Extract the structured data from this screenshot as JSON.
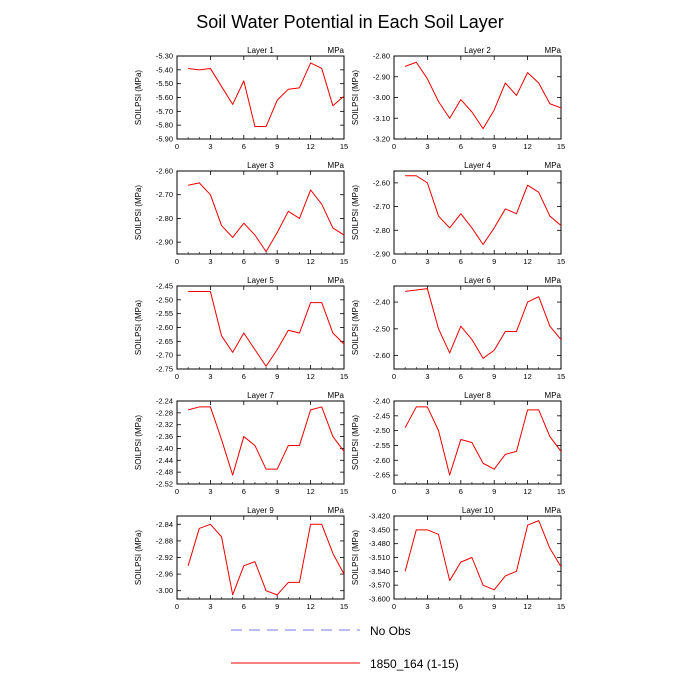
{
  "figure": {
    "title": "Soil Water Potential in Each Soil Layer",
    "units": "MPa",
    "ylabel": "SOILPSI  (MPa)",
    "legend": {
      "entries": [
        {
          "label": "No Obs",
          "color": "#7777ee",
          "style": "dashed"
        },
        {
          "label": "1850_164 (1-15)",
          "color": "#ee0000",
          "style": "solid"
        }
      ]
    }
  },
  "chart_data": [
    {
      "type": "line",
      "title": "Layer 1",
      "units": "MPa",
      "ylabel": "SOILPSI  (MPa)",
      "xlim": [
        0,
        15
      ],
      "xticks": [
        0,
        3,
        6,
        9,
        12,
        15
      ],
      "ylim": [
        -5.9,
        -5.3
      ],
      "yticks": [
        "-5.30",
        "-5.40",
        "-5.50",
        "-5.60",
        "-5.70",
        "-5.80",
        "-5.90"
      ],
      "series": [
        {
          "name": "1850_164 (1-15)",
          "color": "#ee0000",
          "x": [
            1,
            2,
            3,
            4,
            5,
            6,
            7,
            8,
            9,
            10,
            11,
            12,
            13,
            14,
            15
          ],
          "y": [
            -5.39,
            -5.4,
            -5.39,
            -5.52,
            -5.65,
            -5.48,
            -5.81,
            -5.81,
            -5.62,
            -5.54,
            -5.53,
            -5.35,
            -5.39,
            -5.66,
            -5.59
          ]
        }
      ]
    },
    {
      "type": "line",
      "title": "Layer 2",
      "units": "MPa",
      "ylabel": "SOILPSI  (MPa)",
      "xlim": [
        0,
        15
      ],
      "xticks": [
        0,
        3,
        6,
        9,
        12,
        15
      ],
      "ylim": [
        -3.2,
        -2.8
      ],
      "yticks": [
        "-2.80",
        "-2.90",
        "-3.00",
        "-3.10",
        "-3.20"
      ],
      "series": [
        {
          "name": "1850_164 (1-15)",
          "color": "#ee0000",
          "x": [
            1,
            2,
            3,
            4,
            5,
            6,
            7,
            8,
            9,
            10,
            11,
            12,
            13,
            14,
            15
          ],
          "y": [
            -2.85,
            -2.83,
            -2.91,
            -3.02,
            -3.1,
            -3.01,
            -3.07,
            -3.15,
            -3.06,
            -2.93,
            -2.99,
            -2.88,
            -2.93,
            -3.03,
            -3.05
          ]
        }
      ]
    },
    {
      "type": "line",
      "title": "Layer 3",
      "units": "MPa",
      "ylabel": "SOILPSI  (MPa)",
      "xlim": [
        0,
        15
      ],
      "xticks": [
        0,
        3,
        6,
        9,
        12,
        15
      ],
      "ylim": [
        -2.95,
        -2.6
      ],
      "yticks": [
        "-2.60",
        "-2.70",
        "-2.80",
        "-2.90"
      ],
      "series": [
        {
          "name": "1850_164 (1-15)",
          "color": "#ee0000",
          "x": [
            1,
            2,
            3,
            4,
            5,
            6,
            7,
            8,
            9,
            10,
            11,
            12,
            13,
            14,
            15
          ],
          "y": [
            -2.66,
            -2.65,
            -2.7,
            -2.83,
            -2.88,
            -2.82,
            -2.87,
            -2.94,
            -2.86,
            -2.77,
            -2.8,
            -2.68,
            -2.74,
            -2.84,
            -2.87
          ]
        }
      ]
    },
    {
      "type": "line",
      "title": "Layer 4",
      "units": "MPa",
      "ylabel": "SOILPSI  (MPa)",
      "xlim": [
        0,
        15
      ],
      "xticks": [
        0,
        3,
        6,
        9,
        12,
        15
      ],
      "ylim": [
        -2.9,
        -2.55
      ],
      "yticks": [
        "-2.60",
        "-2.70",
        "-2.80",
        "-2.90"
      ],
      "series": [
        {
          "name": "1850_164 (1-15)",
          "color": "#ee0000",
          "x": [
            1,
            2,
            3,
            4,
            5,
            6,
            7,
            8,
            9,
            10,
            11,
            12,
            13,
            14,
            15
          ],
          "y": [
            -2.57,
            -2.57,
            -2.6,
            -2.74,
            -2.79,
            -2.73,
            -2.79,
            -2.86,
            -2.79,
            -2.71,
            -2.73,
            -2.61,
            -2.64,
            -2.74,
            -2.78
          ]
        }
      ]
    },
    {
      "type": "line",
      "title": "Layer 5",
      "units": "MPa",
      "ylabel": "SOILPSI  (MPa)",
      "xlim": [
        0,
        15
      ],
      "xticks": [
        0,
        3,
        6,
        9,
        12,
        15
      ],
      "ylim": [
        -2.75,
        -2.45
      ],
      "yticks": [
        "-2.45",
        "-2.50",
        "-2.55",
        "-2.60",
        "-2.65",
        "-2.70",
        "-2.75"
      ],
      "series": [
        {
          "name": "1850_164 (1-15)",
          "color": "#ee0000",
          "x": [
            1,
            2,
            3,
            4,
            5,
            6,
            7,
            8,
            9,
            10,
            11,
            12,
            13,
            14,
            15
          ],
          "y": [
            -2.47,
            -2.47,
            -2.47,
            -2.63,
            -2.69,
            -2.62,
            -2.68,
            -2.74,
            -2.68,
            -2.61,
            -2.62,
            -2.51,
            -2.51,
            -2.62,
            -2.66
          ]
        }
      ]
    },
    {
      "type": "line",
      "title": "Layer 6",
      "units": "MPa",
      "ylabel": "SOILPSI  (MPa)",
      "xlim": [
        0,
        15
      ],
      "xticks": [
        0,
        3,
        6,
        9,
        12,
        15
      ],
      "ylim": [
        -2.65,
        -2.34
      ],
      "yticks": [
        "-2.40",
        "-2.50",
        "-2.60"
      ],
      "series": [
        {
          "name": "1850_164 (1-15)",
          "color": "#ee0000",
          "x": [
            1,
            2,
            3,
            4,
            5,
            6,
            7,
            8,
            9,
            10,
            11,
            12,
            13,
            14,
            15
          ],
          "y": [
            -2.36,
            -2.355,
            -2.35,
            -2.5,
            -2.59,
            -2.49,
            -2.54,
            -2.61,
            -2.58,
            -2.51,
            -2.51,
            -2.4,
            -2.38,
            -2.49,
            -2.54
          ]
        }
      ]
    },
    {
      "type": "line",
      "title": "Layer 7",
      "units": "MPa",
      "ylabel": "SOILPSI  (MPa)",
      "xlim": [
        0,
        15
      ],
      "xticks": [
        0,
        3,
        6,
        9,
        12,
        15
      ],
      "ylim": [
        -2.52,
        -2.24
      ],
      "yticks": [
        "-2.24",
        "-2.28",
        "-2.32",
        "-2.36",
        "-2.40",
        "-2.44",
        "-2.48",
        "-2.52"
      ],
      "series": [
        {
          "name": "1850_164 (1-15)",
          "color": "#ee0000",
          "x": [
            1,
            2,
            3,
            4,
            5,
            6,
            7,
            8,
            9,
            10,
            11,
            12,
            13,
            14,
            15
          ],
          "y": [
            -2.27,
            -2.26,
            -2.26,
            -2.37,
            -2.49,
            -2.36,
            -2.39,
            -2.47,
            -2.47,
            -2.39,
            -2.39,
            -2.27,
            -2.26,
            -2.36,
            -2.41
          ]
        }
      ]
    },
    {
      "type": "line",
      "title": "Layer 8",
      "units": "MPa",
      "ylabel": "SOILPSI  (MPa)",
      "xlim": [
        0,
        15
      ],
      "xticks": [
        0,
        3,
        6,
        9,
        12,
        15
      ],
      "ylim": [
        -2.68,
        -2.4
      ],
      "yticks": [
        "-2.40",
        "-2.45",
        "-2.50",
        "-2.55",
        "-2.60",
        "-2.65"
      ],
      "series": [
        {
          "name": "1850_164 (1-15)",
          "color": "#ee0000",
          "x": [
            1,
            2,
            3,
            4,
            5,
            6,
            7,
            8,
            9,
            10,
            11,
            12,
            13,
            14,
            15
          ],
          "y": [
            -2.49,
            -2.42,
            -2.42,
            -2.5,
            -2.65,
            -2.53,
            -2.54,
            -2.61,
            -2.63,
            -2.58,
            -2.57,
            -2.43,
            -2.43,
            -2.52,
            -2.57
          ]
        }
      ]
    },
    {
      "type": "line",
      "title": "Layer 9",
      "units": "MPa",
      "ylabel": "SOILPSI  (MPa)",
      "xlim": [
        0,
        15
      ],
      "xticks": [
        0,
        3,
        6,
        9,
        12,
        15
      ],
      "ylim": [
        -3.02,
        -2.82
      ],
      "yticks": [
        "-2.84",
        "-2.88",
        "-2.92",
        "-2.96",
        "-3.00"
      ],
      "series": [
        {
          "name": "1850_164 (1-15)",
          "color": "#ee0000",
          "x": [
            1,
            2,
            3,
            4,
            5,
            6,
            7,
            8,
            9,
            10,
            11,
            12,
            13,
            14,
            15
          ],
          "y": [
            -2.94,
            -2.85,
            -2.84,
            -2.87,
            -3.01,
            -2.94,
            -2.93,
            -3.0,
            -3.01,
            -2.98,
            -2.98,
            -2.84,
            -2.84,
            -2.91,
            -2.96
          ]
        }
      ]
    },
    {
      "type": "line",
      "title": "Layer 10",
      "units": "MPa",
      "ylabel": "SOILPSI  (MPa)",
      "xlim": [
        0,
        15
      ],
      "xticks": [
        0,
        3,
        6,
        9,
        12,
        15
      ],
      "ylim": [
        -3.6,
        -3.42
      ],
      "yticks": [
        "-3.420",
        "-3.450",
        "-3.480",
        "-3.510",
        "-3.540",
        "-3.570",
        "-3.600"
      ],
      "series": [
        {
          "name": "1850_164 (1-15)",
          "color": "#ee0000",
          "x": [
            1,
            2,
            3,
            4,
            5,
            6,
            7,
            8,
            9,
            10,
            11,
            12,
            13,
            14,
            15
          ],
          "y": [
            -3.54,
            -3.45,
            -3.45,
            -3.46,
            -3.56,
            -3.52,
            -3.51,
            -3.57,
            -3.58,
            -3.55,
            -3.54,
            -3.44,
            -3.43,
            -3.49,
            -3.53
          ]
        }
      ]
    }
  ]
}
